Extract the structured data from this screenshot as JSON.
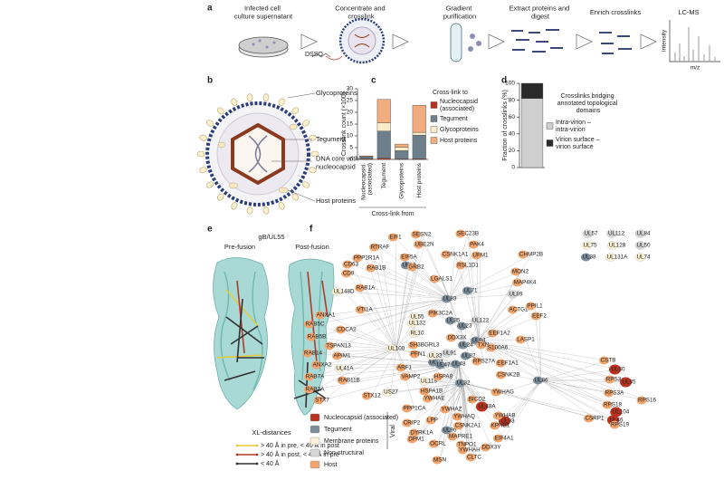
{
  "panel_a": {
    "letter": "a",
    "steps": [
      "Infected cell culture supernatant",
      "Concentrate and crosslink",
      "Gradient purification",
      "Extract proteins and digest",
      "Enrich crosslinks",
      "LC-MS"
    ],
    "reagent": "DSSO",
    "spectrum_y_label": "Intensity",
    "spectrum_x_label": "m/z"
  },
  "panel_b": {
    "letter": "b",
    "labels": [
      "Glycoproteins",
      "Tegument",
      "DNA core with nucleocapsid",
      "Host proteins"
    ]
  },
  "chart_data": [
    {
      "letter": "c",
      "type": "bar",
      "stacked": true,
      "y_label": "Crosslink count (×100)",
      "x_label": "Cross-link from",
      "legend_title": "Cross-link to",
      "categories": [
        "Nucleocapsid (associated)",
        "Tegument",
        "Glycoproteins",
        "Host proteins"
      ],
      "series": [
        {
          "name": "Nucleocapsid (associated)",
          "color": "#b8321f",
          "values": [
            0.3,
            0.5,
            0.2,
            0.3
          ]
        },
        {
          "name": "Tegument",
          "color": "#6e7f8c",
          "values": [
            0.8,
            11.5,
            3.5,
            10
          ]
        },
        {
          "name": "Glycoproteins",
          "color": "#fbecc9",
          "values": [
            0.1,
            3.5,
            1.5,
            1.2
          ]
        },
        {
          "name": "Host proteins",
          "color": "#f2ad7e",
          "values": [
            0.3,
            10,
            1.3,
            11.5
          ]
        }
      ],
      "ylim": [
        0,
        30
      ],
      "yticks": [
        0,
        5,
        10,
        15,
        20,
        25,
        30
      ]
    },
    {
      "letter": "d",
      "type": "bar",
      "stacked": true,
      "y_label": "Fraction of crosslinks (%)",
      "legend_title": "Crosslinks bridging annotated topological domains",
      "categories": [
        null
      ],
      "series": [
        {
          "name": "Intra-virion – intra-virion",
          "color": "#cfcfcf",
          "values": [
            82
          ]
        },
        {
          "name": "Virion surface – virion surface",
          "color": "#2a2a2a",
          "values": [
            18
          ]
        }
      ],
      "ylim": [
        0,
        100
      ],
      "yticks": [
        0,
        20,
        40,
        60,
        80,
        100
      ]
    }
  ],
  "panel_e": {
    "letter": "e",
    "title": "gB/UL55",
    "states": [
      "Pre-fusion",
      "Post-fusion"
    ],
    "legend_title": "XL-distances",
    "legend": [
      {
        "label": "> 40 Å in pre, < 40 Å in post",
        "color": "#e3cc3f"
      },
      {
        "label": "> 40 Å in post, < 40 Å in pre",
        "color": "#b03a2e"
      },
      {
        "label": "< 40 Å",
        "color": "#333333"
      }
    ]
  },
  "panel_f": {
    "letter": "f",
    "viral_label": "Viral",
    "legend": [
      {
        "label": "Nucleocapsid (associated)",
        "color": "#b8321f",
        "nodes": [
          "UL80",
          "UL85",
          "UL104",
          "UL46",
          "UL48A",
          "UL93"
        ]
      },
      {
        "label": "Tegument",
        "color": "#7d8e9b",
        "nodes": [
          "UL38",
          "UL69",
          "UL83",
          "UL71",
          "UL35",
          "UL23",
          "UL94",
          "UL24",
          "UL82",
          "UL97",
          "UL47",
          "UL48",
          "UL32",
          "UL86",
          "UL96"
        ]
      },
      {
        "label": "Membrane proteins",
        "color": "#fdf2d5",
        "nodes": [
          "UL75",
          "UL128",
          "UL131A",
          "UL74",
          "UL148D",
          "UL55",
          "UL132",
          "RL10",
          "UL100",
          "UL33",
          "UL119",
          "US27",
          "UL41A"
        ]
      },
      {
        "label": "Non-structural",
        "color": "#d6d6d6",
        "nodes": [
          "UL57",
          "UL112",
          "UL84",
          "UL50",
          "UL89",
          "UL122",
          "UL91"
        ]
      },
      {
        "label": "Host",
        "color": "#f0a56e",
        "nodes": [
          "EIF1",
          "SESN2",
          "SEC23B",
          "RTRAF",
          "UBE2N",
          "PAK4",
          "PPP2R1A",
          "EIF5A",
          "CSNK1A1",
          "UFM1",
          "CHMP2B",
          "CD63",
          "RAB1B",
          "CD9",
          "GRB2",
          "RSL1D1",
          "MON2",
          "MAP4K4",
          "RAB1A",
          "LGALS1",
          "VTI1A",
          "PIK3C2A",
          "ACTG1",
          "PPIL1",
          "EEF2",
          "ANXA1",
          "RAB5C",
          "CDCA2",
          "DDX3X",
          "EEF1A2",
          "RAB5B",
          "TSPAN13",
          "SH3BGRL3",
          "TXN",
          "S100A6",
          "LASP1",
          "RAB14",
          "APIM1",
          "PFN1",
          "RPS27A",
          "EEF1A1",
          "ANXA2",
          "ARF1",
          "VAMP2",
          "CSNK2B",
          "HSPA8",
          "CSTB",
          "RAB7A",
          "RAB11B",
          "RPS3",
          "HSPA1B",
          "YWHAG",
          "RAB2A",
          "STX12",
          "RPS3A",
          "YWHAE",
          "STX7",
          "BICD2",
          "RPS16",
          "RPS18",
          "PPP1CA",
          "YWHAZ",
          "YWHAB",
          "YWHAQ",
          "CSRP1",
          "LPP",
          "CRIP2",
          "RPS19",
          "CSNK2A1",
          "KPNB1",
          "DYRK1A",
          "MAPRE1",
          "EIF4A1",
          "DPM1",
          "OCRL",
          "TNPO1",
          "DDX3Y",
          "YWHAH",
          "CLTC",
          "MSN"
        ]
      }
    ]
  }
}
